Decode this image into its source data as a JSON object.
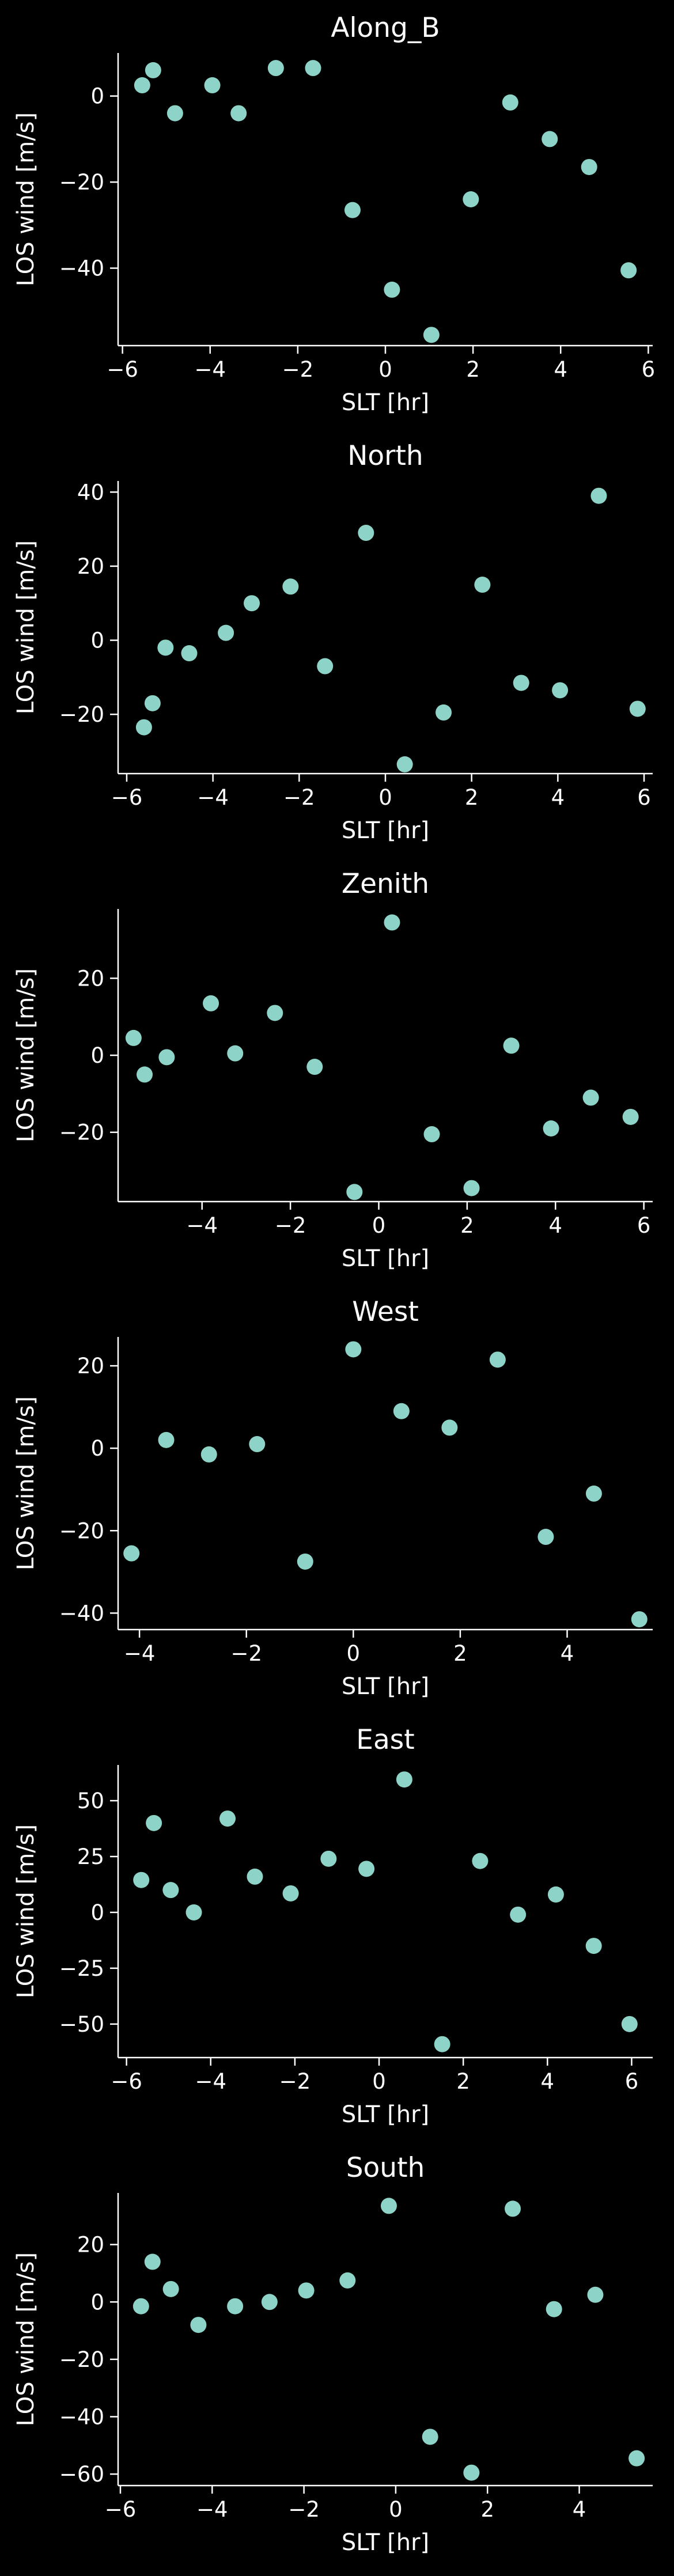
{
  "colors": {
    "background": "#000000",
    "foreground": "#ffffff",
    "marker": "#8dd3c7"
  },
  "chart_data": [
    {
      "type": "scatter",
      "title": "Along_B",
      "xlabel": "SLT [hr]",
      "ylabel": "LOS wind [m/s]",
      "xlim": [
        -6.1,
        6.1
      ],
      "ylim": [
        -58,
        10
      ],
      "xticks": [
        -6,
        -4,
        -2,
        0,
        2,
        4,
        6
      ],
      "yticks": [
        -40,
        -20,
        0
      ],
      "x": [
        -5.55,
        -5.3,
        -4.8,
        -3.95,
        -3.35,
        -2.5,
        -1.65,
        -0.75,
        0.15,
        1.05,
        1.95,
        2.85,
        3.75,
        4.65,
        5.55
      ],
      "y": [
        2.5,
        6.0,
        -4.0,
        2.5,
        -4.0,
        6.5,
        6.5,
        -26.5,
        -45.0,
        -55.5,
        -24.0,
        -1.5,
        -10.0,
        -16.5,
        -40.5
      ]
    },
    {
      "type": "scatter",
      "title": "North",
      "xlabel": "SLT [hr]",
      "ylabel": "LOS wind [m/s]",
      "xlim": [
        -6.2,
        6.2
      ],
      "ylim": [
        -36,
        43
      ],
      "xticks": [
        -6,
        -4,
        -2,
        0,
        2,
        4,
        6
      ],
      "yticks": [
        -20,
        0,
        20,
        40
      ],
      "x": [
        -5.6,
        -5.4,
        -5.1,
        -4.55,
        -3.7,
        -3.1,
        -2.2,
        -1.4,
        -0.45,
        0.45,
        1.35,
        2.25,
        3.15,
        4.05,
        4.95,
        5.85
      ],
      "y": [
        -23.5,
        -17.0,
        -2.0,
        -3.5,
        2.0,
        10.0,
        14.5,
        -7.0,
        29.0,
        -33.5,
        -19.5,
        15.0,
        -11.5,
        -13.5,
        39.0,
        -18.5
      ]
    },
    {
      "type": "scatter",
      "title": "Zenith",
      "xlabel": "SLT [hr]",
      "ylabel": "LOS wind [m/s]",
      "xlim": [
        -5.9,
        6.2
      ],
      "ylim": [
        -38,
        38
      ],
      "xticks": [
        -4,
        -2,
        0,
        2,
        4,
        6
      ],
      "yticks": [
        -20,
        0,
        20
      ],
      "x": [
        -5.55,
        -5.3,
        -4.8,
        -3.8,
        -3.25,
        -2.35,
        -1.45,
        -0.55,
        0.3,
        1.2,
        2.1,
        3.0,
        3.9,
        4.8,
        5.7
      ],
      "y": [
        4.5,
        -5.0,
        -0.5,
        13.5,
        0.5,
        11.0,
        -3.0,
        -35.5,
        34.5,
        -20.5,
        -34.5,
        2.5,
        -19.0,
        -11.0,
        -16.0
      ]
    },
    {
      "type": "scatter",
      "title": "West",
      "xlabel": "SLT [hr]",
      "ylabel": "LOS wind [m/s]",
      "xlim": [
        -4.4,
        5.6
      ],
      "ylim": [
        -44,
        27
      ],
      "xticks": [
        -4,
        -2,
        0,
        2,
        4
      ],
      "yticks": [
        -40,
        -20,
        0,
        20
      ],
      "x": [
        -4.15,
        -3.5,
        -2.7,
        -1.8,
        -0.9,
        0.0,
        0.9,
        1.8,
        2.7,
        3.6,
        4.5,
        5.35
      ],
      "y": [
        -25.5,
        2.0,
        -1.5,
        1.0,
        -27.5,
        24.0,
        9.0,
        5.0,
        21.5,
        -21.5,
        -11.0,
        -41.5
      ]
    },
    {
      "type": "scatter",
      "title": "East",
      "xlabel": "SLT [hr]",
      "ylabel": "LOS wind [m/s]",
      "xlim": [
        -6.2,
        6.5
      ],
      "ylim": [
        -65,
        66
      ],
      "xticks": [
        -6,
        -4,
        -2,
        0,
        2,
        4,
        6
      ],
      "yticks": [
        -50,
        -25,
        0,
        25,
        50
      ],
      "x": [
        -5.65,
        -5.35,
        -4.95,
        -4.4,
        -3.6,
        -2.95,
        -2.1,
        -1.2,
        -0.3,
        0.6,
        1.5,
        2.4,
        3.3,
        4.2,
        5.1,
        5.95
      ],
      "y": [
        14.5,
        40.0,
        10.0,
        0.0,
        42.0,
        16.0,
        8.5,
        24.0,
        19.5,
        59.5,
        -59.0,
        23.0,
        -1.0,
        8.0,
        -15.0,
        -50.0
      ]
    },
    {
      "type": "scatter",
      "title": "South",
      "xlabel": "SLT [hr]",
      "ylabel": "LOS wind [m/s]",
      "xlim": [
        -6.05,
        5.6
      ],
      "ylim": [
        -64,
        38
      ],
      "xticks": [
        -6,
        -4,
        -2,
        0,
        2,
        4
      ],
      "yticks": [
        -60,
        -40,
        -20,
        0,
        20
      ],
      "x": [
        -5.55,
        -5.3,
        -4.9,
        -4.3,
        -3.5,
        -2.75,
        -1.95,
        -1.05,
        -0.15,
        0.75,
        1.65,
        2.55,
        3.45,
        4.35,
        5.25
      ],
      "y": [
        -1.5,
        14.0,
        4.5,
        -8.0,
        -1.5,
        0.0,
        4.0,
        7.5,
        33.5,
        -47.0,
        -59.5,
        32.5,
        -2.5,
        2.5,
        -54.5
      ]
    }
  ]
}
